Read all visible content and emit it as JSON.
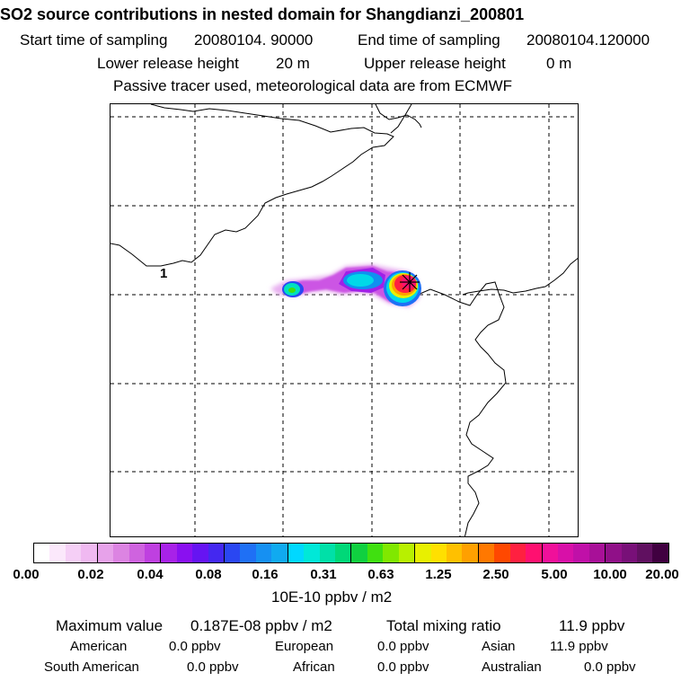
{
  "header": {
    "title": "SO2 source contributions in nested domain for Shangdianzi_200801",
    "start_label": "Start time of sampling",
    "start_value": "20080104. 90000",
    "end_label": "End time of sampling",
    "end_value": "20080104.120000",
    "lower_label": "Lower release height",
    "lower_value": "20 m",
    "upper_label": "Upper release height",
    "upper_value": "0 m",
    "note": "Passive tracer used, meteorological data are from ECMWF"
  },
  "map": {
    "region_label": "1"
  },
  "colorbar": {
    "ticks": [
      "0.00",
      "0.02",
      "0.04",
      "0.08",
      "0.16",
      "0.31",
      "0.63",
      "1.25",
      "2.50",
      "5.00",
      "10.00",
      "20.00"
    ],
    "unit": "10E-10 ppbv / m2",
    "colors": [
      "#ffffff",
      "#fbe8fb",
      "#f5cff6",
      "#f0b9f1",
      "#e7a2ea",
      "#dc84e2",
      "#cf63df",
      "#bf40e0",
      "#a822e8",
      "#8a10f0",
      "#6614f2",
      "#4428f0",
      "#2a47f2",
      "#1f70f5",
      "#1690f2",
      "#10aaf0",
      "#00d8ff",
      "#00e8d8",
      "#00e0a8",
      "#00d878",
      "#10d040",
      "#40e010",
      "#80e800",
      "#b8f000",
      "#e8f000",
      "#ffe000",
      "#ffc000",
      "#ffa000",
      "#ff7800",
      "#ff4800",
      "#ff2040",
      "#ff1070",
      "#f0109a",
      "#d810a8",
      "#c010a8",
      "#a81098",
      "#901088",
      "#781078",
      "#601060",
      "#400040"
    ]
  },
  "footer": {
    "max_label": "Maximum value",
    "max_value": "0.187E-08 ppbv / m2",
    "total_label": "Total mixing ratio",
    "total_value": "11.9 ppbv",
    "regions": [
      {
        "name": "American",
        "value": "0.0 ppbv"
      },
      {
        "name": "European",
        "value": "0.0 ppbv"
      },
      {
        "name": "Asian",
        "value": "11.9 ppbv"
      },
      {
        "name": "South American",
        "value": "0.0 ppbv"
      },
      {
        "name": "African",
        "value": "0.0 ppbv"
      },
      {
        "name": "Australian",
        "value": "0.0 ppbv"
      }
    ]
  }
}
